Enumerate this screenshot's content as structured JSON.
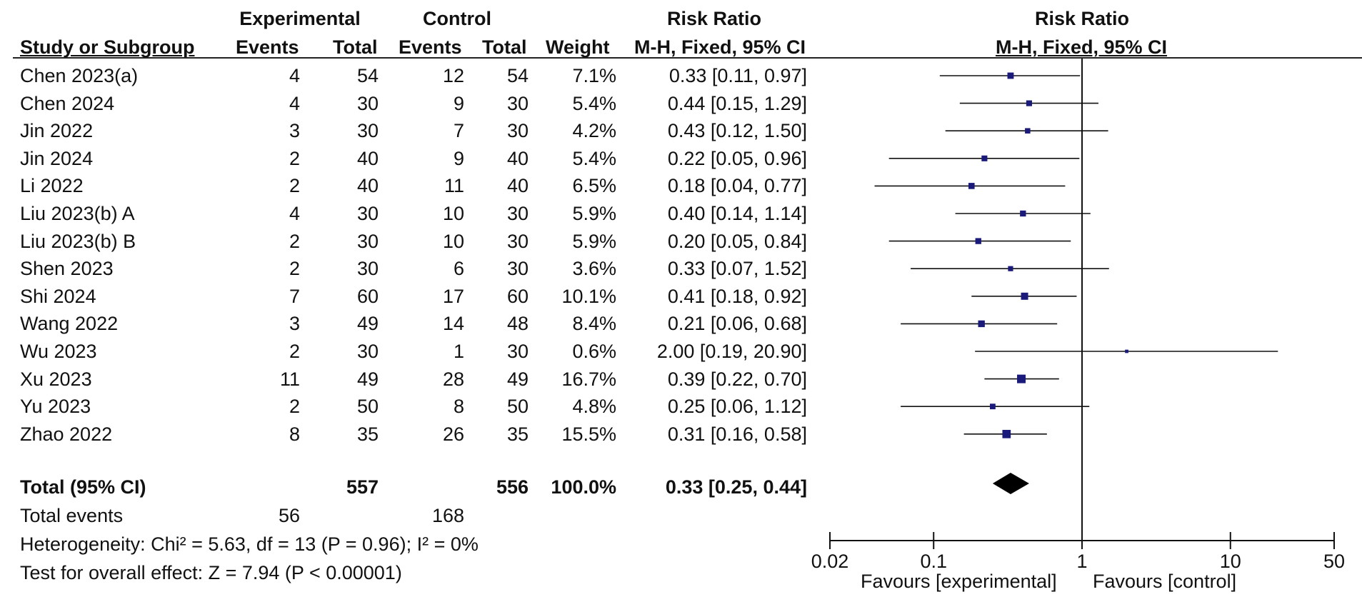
{
  "header": {
    "group1": "Experimental",
    "group2": "Control",
    "rr_title": "Risk Ratio",
    "rr_method": "M-H, Fixed, 95% CI",
    "study_label": "Study or Subgroup",
    "events": "Events",
    "total": "Total",
    "weight": "Weight",
    "plot_title": "Risk Ratio",
    "plot_method": "M-H, Fixed, 95% CI"
  },
  "studies": [
    {
      "name": "Chen 2023(a)",
      "exp_events": "4",
      "exp_total": "54",
      "ctl_events": "12",
      "ctl_total": "54",
      "weight": "7.1%",
      "ci_text": "0.33 [0.11, 0.97]"
    },
    {
      "name": "Chen 2024",
      "exp_events": "4",
      "exp_total": "30",
      "ctl_events": "9",
      "ctl_total": "30",
      "weight": "5.4%",
      "ci_text": "0.44 [0.15, 1.29]"
    },
    {
      "name": "Jin 2022",
      "exp_events": "3",
      "exp_total": "30",
      "ctl_events": "7",
      "ctl_total": "30",
      "weight": "4.2%",
      "ci_text": "0.43 [0.12, 1.50]"
    },
    {
      "name": "Jin 2024",
      "exp_events": "2",
      "exp_total": "40",
      "ctl_events": "9",
      "ctl_total": "40",
      "weight": "5.4%",
      "ci_text": "0.22 [0.05, 0.96]"
    },
    {
      "name": "Li 2022",
      "exp_events": "2",
      "exp_total": "40",
      "ctl_events": "11",
      "ctl_total": "40",
      "weight": "6.5%",
      "ci_text": "0.18 [0.04, 0.77]"
    },
    {
      "name": "Liu 2023(b) A",
      "exp_events": "4",
      "exp_total": "30",
      "ctl_events": "10",
      "ctl_total": "30",
      "weight": "5.9%",
      "ci_text": "0.40 [0.14, 1.14]"
    },
    {
      "name": "Liu 2023(b) B",
      "exp_events": "2",
      "exp_total": "30",
      "ctl_events": "10",
      "ctl_total": "30",
      "weight": "5.9%",
      "ci_text": "0.20 [0.05, 0.84]"
    },
    {
      "name": "Shen 2023",
      "exp_events": "2",
      "exp_total": "30",
      "ctl_events": "6",
      "ctl_total": "30",
      "weight": "3.6%",
      "ci_text": "0.33 [0.07, 1.52]"
    },
    {
      "name": "Shi 2024",
      "exp_events": "7",
      "exp_total": "60",
      "ctl_events": "17",
      "ctl_total": "60",
      "weight": "10.1%",
      "ci_text": "0.41 [0.18, 0.92]"
    },
    {
      "name": "Wang 2022",
      "exp_events": "3",
      "exp_total": "49",
      "ctl_events": "14",
      "ctl_total": "48",
      "weight": "8.4%",
      "ci_text": "0.21 [0.06, 0.68]"
    },
    {
      "name": "Wu 2023",
      "exp_events": "2",
      "exp_total": "30",
      "ctl_events": "1",
      "ctl_total": "30",
      "weight": "0.6%",
      "ci_text": "2.00 [0.19, 20.90]"
    },
    {
      "name": "Xu 2023",
      "exp_events": "11",
      "exp_total": "49",
      "ctl_events": "28",
      "ctl_total": "49",
      "weight": "16.7%",
      "ci_text": "0.39 [0.22, 0.70]"
    },
    {
      "name": "Yu 2023",
      "exp_events": "2",
      "exp_total": "50",
      "ctl_events": "8",
      "ctl_total": "50",
      "weight": "4.8%",
      "ci_text": "0.25 [0.06, 1.12]"
    },
    {
      "name": "Zhao 2022",
      "exp_events": "8",
      "exp_total": "35",
      "ctl_events": "26",
      "ctl_total": "35",
      "weight": "15.5%",
      "ci_text": "0.31 [0.16, 0.58]"
    }
  ],
  "total_row": {
    "label": "Total (95% CI)",
    "exp_total": "557",
    "ctl_total": "556",
    "weight": "100.0%",
    "ci_text": "0.33 [0.25, 0.44]"
  },
  "total_events": {
    "label": "Total events",
    "exp": "56",
    "ctl": "168"
  },
  "heterogeneity": "Heterogeneity: Chi² = 5.63, df = 13 (P = 0.96); I² = 0%",
  "overall_effect": "Test for overall effect: Z = 7.94 (P < 0.00001)",
  "axis": {
    "ticks": [
      {
        "value": 0.02,
        "label": "0.02"
      },
      {
        "value": 0.1,
        "label": "0.1"
      },
      {
        "value": 1,
        "label": "1"
      },
      {
        "value": 10,
        "label": "10"
      },
      {
        "value": 50,
        "label": "50"
      }
    ],
    "favours_left": "Favours [experimental]",
    "favours_right": "Favours [control]"
  },
  "colors": {
    "marker": "#1a1a7a",
    "line": "#111111",
    "diamond": "#000000"
  },
  "chart_data": {
    "type": "forest",
    "title": "Risk Ratio M-H, Fixed, 95% CI",
    "scale": "log",
    "xlim": [
      0.02,
      50
    ],
    "null_value": 1,
    "studies": [
      {
        "name": "Chen 2023(a)",
        "rr": 0.33,
        "lo": 0.11,
        "hi": 0.97,
        "weight": 7.1
      },
      {
        "name": "Chen 2024",
        "rr": 0.44,
        "lo": 0.15,
        "hi": 1.29,
        "weight": 5.4
      },
      {
        "name": "Jin 2022",
        "rr": 0.43,
        "lo": 0.12,
        "hi": 1.5,
        "weight": 4.2
      },
      {
        "name": "Jin 2024",
        "rr": 0.22,
        "lo": 0.05,
        "hi": 0.96,
        "weight": 5.4
      },
      {
        "name": "Li 2022",
        "rr": 0.18,
        "lo": 0.04,
        "hi": 0.77,
        "weight": 6.5
      },
      {
        "name": "Liu 2023(b) A",
        "rr": 0.4,
        "lo": 0.14,
        "hi": 1.14,
        "weight": 5.9
      },
      {
        "name": "Liu 2023(b) B",
        "rr": 0.2,
        "lo": 0.05,
        "hi": 0.84,
        "weight": 5.9
      },
      {
        "name": "Shen 2023",
        "rr": 0.33,
        "lo": 0.07,
        "hi": 1.52,
        "weight": 3.6
      },
      {
        "name": "Shi 2024",
        "rr": 0.41,
        "lo": 0.18,
        "hi": 0.92,
        "weight": 10.1
      },
      {
        "name": "Wang 2022",
        "rr": 0.21,
        "lo": 0.06,
        "hi": 0.68,
        "weight": 8.4
      },
      {
        "name": "Wu 2023",
        "rr": 2.0,
        "lo": 0.19,
        "hi": 20.9,
        "weight": 0.6
      },
      {
        "name": "Xu 2023",
        "rr": 0.39,
        "lo": 0.22,
        "hi": 0.7,
        "weight": 16.7
      },
      {
        "name": "Yu 2023",
        "rr": 0.25,
        "lo": 0.06,
        "hi": 1.12,
        "weight": 4.8
      },
      {
        "name": "Zhao 2022",
        "rr": 0.31,
        "lo": 0.16,
        "hi": 0.58,
        "weight": 15.5
      }
    ],
    "pooled": {
      "rr": 0.33,
      "lo": 0.25,
      "hi": 0.44
    }
  }
}
